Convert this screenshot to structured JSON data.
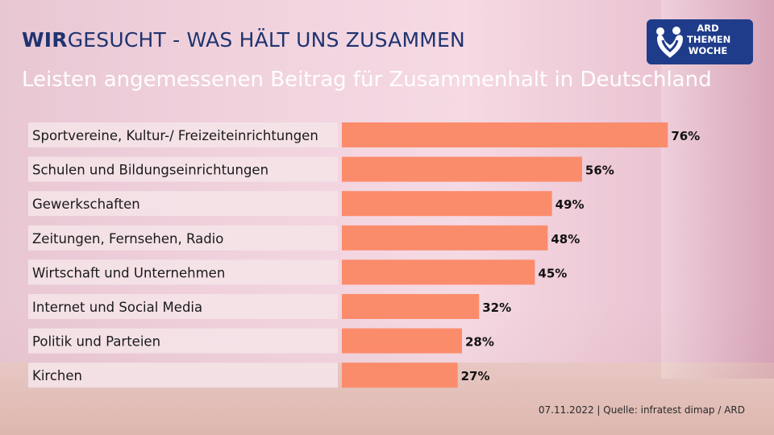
{
  "header": {
    "brand": "WIR",
    "rest": "GESUCHT - WAS HÄLT UNS ZUSAMMEN"
  },
  "logo": {
    "line1": "ARD",
    "line2": "THEMEN",
    "line3": "WOCHE",
    "icon": "ard-themenwoche-logo-icon"
  },
  "source": "07.11.2022 | Quelle: infratest dimap / ARD",
  "colors": {
    "bar": "#fb8c6b",
    "label_bg": "#f4e3e8",
    "title": "#1f3470"
  },
  "chart_data": {
    "type": "bar",
    "orientation": "horizontal",
    "title": "Leisten angemessenen Beitrag für Zusammenhalt in Deutschland",
    "categories": [
      "Sportvereine, Kultur-/ Freizeiteinrichtungen",
      "Schulen und Bildungseinrichtungen",
      "Gewerkschaften",
      "Zeitungen, Fernsehen, Radio",
      "Wirtschaft und Unternehmen",
      "Internet und Social Media",
      "Politik und Parteien",
      "Kirchen"
    ],
    "values": [
      76,
      56,
      49,
      48,
      45,
      32,
      28,
      27
    ],
    "value_labels": [
      "76%",
      "56%",
      "49%",
      "48%",
      "45%",
      "32%",
      "28%",
      "27%"
    ],
    "unit": "%",
    "xlim": [
      0,
      100
    ],
    "grid": false,
    "legend": "none"
  }
}
